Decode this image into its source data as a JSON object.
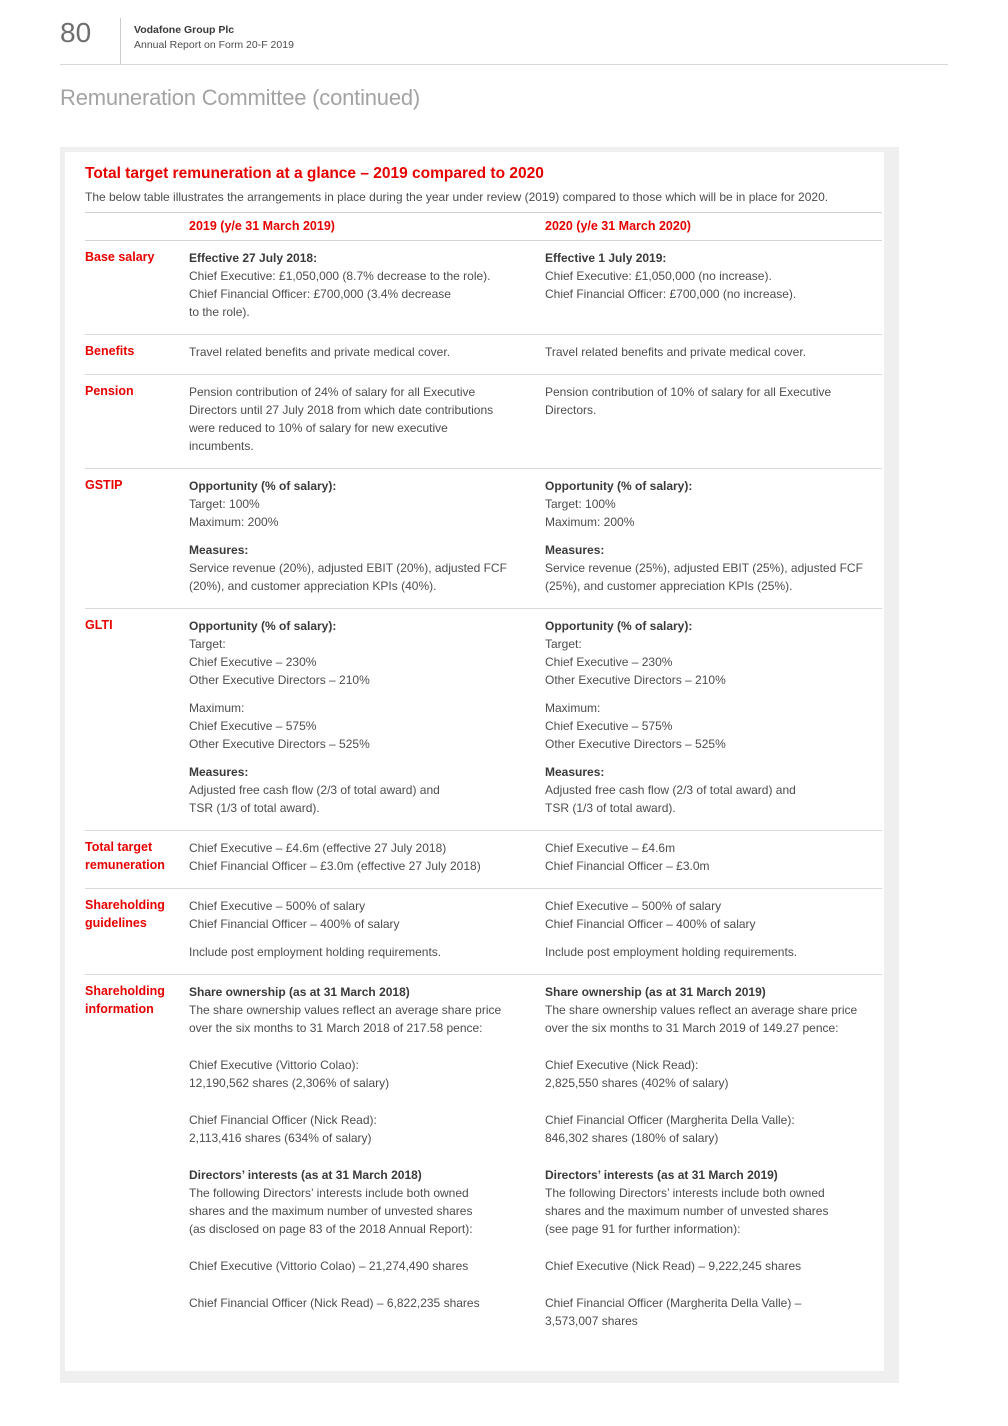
{
  "colors": {
    "accent_red": "#e60000",
    "muted_gray": "#a3a3a3"
  },
  "header": {
    "page_number": "80",
    "company": "Vodafone Group Plc",
    "report": "Annual Report on Form 20-F 2019",
    "section_title": "Remuneration Committee (continued)"
  },
  "panel": {
    "title": "Total target remuneration at a glance – 2019 compared to 2020",
    "intro": "The below table illustrates the arrangements in place during the year under review (2019) compared to those which will be in place for 2020.",
    "column_headers": [
      "2019 (y/e 31 March 2019)",
      "2020 (y/e 31 March 2020)"
    ],
    "rows": [
      {
        "label": "Base salary",
        "cells": [
          [
            {
              "head": "Effective 27 July 2018:",
              "lines": [
                "Chief Executive: £1,050,000 (8.7% decrease to the role).",
                "Chief Financial Officer: £700,000 (3.4% decrease",
                "to the role)."
              ]
            }
          ],
          [
            {
              "head": "Effective 1 July 2019:",
              "lines": [
                "Chief Executive: £1,050,000 (no increase).",
                "Chief Financial Officer: £700,000 (no increase)."
              ]
            }
          ]
        ]
      },
      {
        "label": "Benefits",
        "cells": [
          [
            {
              "lines": [
                "Travel related benefits and private medical cover."
              ]
            }
          ],
          [
            {
              "lines": [
                "Travel related benefits and private medical cover."
              ]
            }
          ]
        ]
      },
      {
        "label": "Pension",
        "cells": [
          [
            {
              "lines": [
                "Pension contribution of 24% of salary for all Executive",
                "Directors until 27 July 2018 from which date contributions",
                "were reduced to 10% of salary for new executive",
                "incumbents."
              ]
            }
          ],
          [
            {
              "lines": [
                "Pension contribution of 10% of salary for all Executive",
                "Directors."
              ]
            }
          ]
        ]
      },
      {
        "label": "GSTIP",
        "cells": [
          [
            {
              "head": "Opportunity (% of salary):",
              "lines": [
                "Target: 100%",
                "Maximum: 200%"
              ]
            },
            {
              "head": "Measures:",
              "lines": [
                "Service revenue (20%), adjusted EBIT (20%), adjusted FCF",
                "(20%), and customer appreciation KPIs (40%)."
              ]
            }
          ],
          [
            {
              "head": "Opportunity (% of salary):",
              "lines": [
                "Target: 100%",
                "Maximum: 200%"
              ]
            },
            {
              "head": "Measures:",
              "lines": [
                "Service revenue (25%), adjusted EBIT (25%), adjusted FCF",
                "(25%), and customer appreciation KPIs (25%)."
              ]
            }
          ]
        ]
      },
      {
        "label": "GLTI",
        "cells": [
          [
            {
              "head": "Opportunity (% of salary):",
              "lines": [
                "Target:",
                "Chief Executive – 230%",
                "Other Executive Directors – 210%"
              ]
            },
            {
              "lines": [
                "Maximum:",
                "Chief Executive – 575%",
                "Other Executive Directors – 525%"
              ]
            },
            {
              "head": "Measures:",
              "lines": [
                "Adjusted free cash flow (2/3 of total award) and",
                "TSR (1/3 of total award)."
              ]
            }
          ],
          [
            {
              "head": "Opportunity (% of salary):",
              "lines": [
                "Target:",
                "Chief Executive – 230%",
                "Other Executive Directors – 210%"
              ]
            },
            {
              "lines": [
                "Maximum:",
                "Chief Executive – 575%",
                "Other Executive Directors – 525%"
              ]
            },
            {
              "head": "Measures:",
              "lines": [
                "Adjusted free cash flow (2/3 of total award) and",
                "TSR (1/3 of total award)."
              ]
            }
          ]
        ]
      },
      {
        "label": "Total target remuneration",
        "cells": [
          [
            {
              "lines": [
                "Chief Executive – £4.6m (effective 27 July 2018)",
                "Chief Financial Officer – £3.0m (effective 27 July 2018)"
              ]
            }
          ],
          [
            {
              "lines": [
                "Chief Executive – £4.6m",
                "Chief Financial Officer – £3.0m"
              ]
            }
          ]
        ]
      },
      {
        "label": "Shareholding guidelines",
        "cells": [
          [
            {
              "lines": [
                "Chief Executive – 500% of salary",
                "Chief Financial Officer – 400% of salary"
              ]
            },
            {
              "lines": [
                "Include post employment holding requirements."
              ]
            }
          ],
          [
            {
              "lines": [
                "Chief Executive – 500% of salary",
                "Chief Financial Officer – 400% of salary"
              ]
            },
            {
              "lines": [
                "Include post employment holding requirements."
              ]
            }
          ]
        ]
      },
      {
        "label": "Shareholding information",
        "cells": [
          [
            {
              "head": "Share ownership (as at 31 March 2018)",
              "lines": [
                "The share ownership values reflect an average share price",
                "over the six months to 31 March 2018 of 217.58 pence:"
              ]
            },
            {
              "gap": true,
              "lines": [
                "Chief Executive (Vittorio Colao):",
                "12,190,562 shares (2,306% of salary)"
              ]
            },
            {
              "gap": true,
              "lines": [
                "Chief Financial Officer (Nick Read):",
                "2,113,416 shares (634% of salary)"
              ]
            },
            {
              "gap": true,
              "head": "Directors’ interests (as at 31 March 2018)",
              "lines": [
                "The following Directors’ interests include both owned",
                "shares and the maximum number of unvested shares",
                "(as disclosed on page 83 of the 2018 Annual Report):"
              ]
            },
            {
              "gap": true,
              "lines": [
                "Chief Executive (Vittorio Colao) – 21,274,490 shares"
              ]
            },
            {
              "gap": true,
              "lines": [
                "Chief Financial Officer (Nick Read) – 6,822,235 shares"
              ]
            }
          ],
          [
            {
              "head": "Share ownership (as at 31 March 2019)",
              "lines": [
                "The share ownership values reflect an average share price",
                "over the six months to 31 March 2019 of 149.27 pence:"
              ]
            },
            {
              "gap": true,
              "lines": [
                "Chief Executive (Nick Read):",
                "2,825,550 shares (402% of salary)"
              ]
            },
            {
              "gap": true,
              "lines": [
                "Chief Financial Officer (Margherita Della Valle):",
                "846,302 shares (180% of salary)"
              ]
            },
            {
              "gap": true,
              "head": "Directors’ interests (as at 31 March 2019)",
              "lines": [
                "The following Directors’ interests include both owned",
                "shares and the maximum number of unvested shares",
                "(see page 91 for further information):"
              ]
            },
            {
              "gap": true,
              "lines": [
                "Chief Executive (Nick Read) – 9,222,245 shares"
              ]
            },
            {
              "gap": true,
              "lines": [
                "Chief Financial Officer (Margherita Della Valle) –",
                "3,573,007 shares"
              ]
            }
          ]
        ]
      }
    ]
  }
}
